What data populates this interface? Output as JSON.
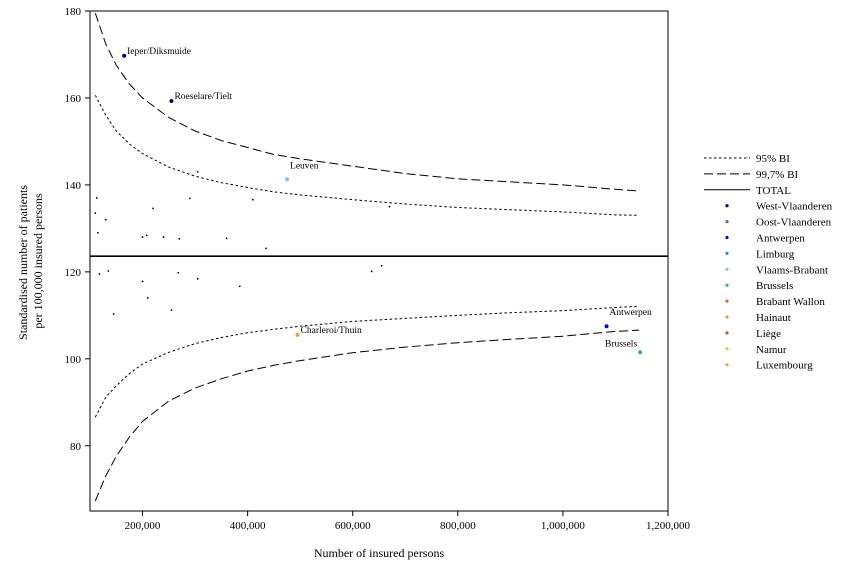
{
  "chart_data": {
    "type": "scatter",
    "title": "",
    "xlabel": "Number of insured persons",
    "ylabel_lines": [
      "Standardised number of patients",
      "per 100,000 insured persons"
    ],
    "xlim": [
      100000,
      1200000
    ],
    "ylim": [
      65,
      180
    ],
    "xticks": [
      200000,
      400000,
      600000,
      800000,
      1000000,
      1200000
    ],
    "xtick_labels": [
      "200,000",
      "400,000",
      "600,000",
      "800,000",
      "1,000,000",
      "1,200,000"
    ],
    "yticks": [
      80,
      100,
      120,
      140,
      160,
      180
    ],
    "ytick_labels": [
      "80",
      "100",
      "120",
      "140",
      "160",
      "180"
    ],
    "grid": false,
    "legend_position": "right",
    "total": 123.6,
    "limits_x": [
      110000,
      130000,
      150000,
      175000,
      200000,
      250000,
      300000,
      350000,
      400000,
      450000,
      500000,
      600000,
      700000,
      800000,
      900000,
      1000000,
      1100000,
      1145000
    ],
    "limits": [
      {
        "name": "95% BI",
        "style": "dotted",
        "upper": [
          160.6,
          156.0,
          152.4,
          149.4,
          147.2,
          144.1,
          142.0,
          140.5,
          139.4,
          138.4,
          137.7,
          136.6,
          135.6,
          134.8,
          134.3,
          133.8,
          133.1,
          133.0
        ],
        "lower": [
          86.6,
          91.2,
          93.8,
          96.6,
          98.8,
          101.5,
          103.5,
          104.9,
          106.0,
          106.8,
          107.5,
          108.6,
          109.3,
          110.0,
          110.6,
          111.1,
          111.8,
          112.1
        ]
      },
      {
        "name": "99,7% BI",
        "style": "dashed",
        "upper": [
          179.5,
          172.4,
          167.5,
          163.2,
          160.0,
          155.5,
          152.4,
          150.2,
          148.6,
          147.0,
          146.0,
          144.3,
          142.6,
          141.4,
          140.7,
          140.0,
          139.0,
          138.6
        ],
        "lower": [
          67.3,
          73.1,
          77.6,
          82.0,
          85.6,
          90.3,
          93.3,
          95.4,
          97.2,
          98.5,
          99.6,
          101.4,
          102.7,
          103.7,
          104.5,
          105.2,
          106.3,
          106.6
        ]
      }
    ],
    "highlighted_points": [
      {
        "label": "Ieper/Diksmuide",
        "province": "West-Vlaanderen",
        "x": 165000,
        "y": 169.7,
        "label_pos": "right"
      },
      {
        "label": "Roeselare/Tielt",
        "province": "West-Vlaanderen",
        "x": 255000,
        "y": 159.3,
        "label_pos": "right"
      },
      {
        "label": "Leuven",
        "province": "Vlaams-Brabant",
        "x": 475000,
        "y": 141.3,
        "label_pos": "upper-right"
      },
      {
        "label": "Charleroi/Thuin",
        "province": "Hainaut",
        "x": 495000,
        "y": 105.5,
        "label_pos": "right"
      },
      {
        "label": "Antwerpen",
        "province": "Antwerpen",
        "x": 1083000,
        "y": 107.5,
        "label_pos": "upper-right"
      },
      {
        "label": "Brussels",
        "province": "Brussels",
        "x": 1147000,
        "y": 101.5,
        "label_pos": "left"
      }
    ],
    "other_points": [
      {
        "x": 110000,
        "y": 133.5
      },
      {
        "x": 113000,
        "y": 137.0
      },
      {
        "x": 115000,
        "y": 129.0
      },
      {
        "x": 130000,
        "y": 132.0
      },
      {
        "x": 200000,
        "y": 128.0
      },
      {
        "x": 208000,
        "y": 128.4
      },
      {
        "x": 220000,
        "y": 134.6
      },
      {
        "x": 240000,
        "y": 128.0
      },
      {
        "x": 270000,
        "y": 127.6
      },
      {
        "x": 290000,
        "y": 136.9
      },
      {
        "x": 305000,
        "y": 143.0
      },
      {
        "x": 360000,
        "y": 127.7
      },
      {
        "x": 410000,
        "y": 136.6
      },
      {
        "x": 435000,
        "y": 125.4
      },
      {
        "x": 670000,
        "y": 135.0
      },
      {
        "x": 118000,
        "y": 119.5
      },
      {
        "x": 135000,
        "y": 120.2
      },
      {
        "x": 145000,
        "y": 110.3
      },
      {
        "x": 200000,
        "y": 117.8
      },
      {
        "x": 210000,
        "y": 114.0
      },
      {
        "x": 255000,
        "y": 111.2
      },
      {
        "x": 268000,
        "y": 119.8
      },
      {
        "x": 305000,
        "y": 118.4
      },
      {
        "x": 385000,
        "y": 116.7
      },
      {
        "x": 636000,
        "y": 120.1
      },
      {
        "x": 655000,
        "y": 121.4
      }
    ],
    "legend": [
      {
        "label": "95% BI",
        "kind": "line",
        "style": "dotted",
        "color": "#000000"
      },
      {
        "label": "99,7% BI",
        "kind": "line",
        "style": "dashed",
        "color": "#000000"
      },
      {
        "label": "TOTAL",
        "kind": "line",
        "style": "solid",
        "color": "#000000"
      },
      {
        "label": "West-Vlaanderen",
        "kind": "point",
        "color": "#00007f"
      },
      {
        "label": "Oost-Vlaanderen",
        "kind": "point",
        "color": "#3f6fcf"
      },
      {
        "label": "Antwerpen",
        "kind": "point",
        "color": "#0000ee"
      },
      {
        "label": "Limburg",
        "kind": "point",
        "color": "#2f8fe8"
      },
      {
        "label": "Vlaams-Brabant",
        "kind": "point",
        "color": "#7fbfff"
      },
      {
        "label": "Brussels",
        "kind": "point",
        "color": "#2ec24a"
      },
      {
        "label": "Brabant Wallon",
        "kind": "point",
        "color": "#e0652a"
      },
      {
        "label": "Hainaut",
        "kind": "point",
        "color": "#f29a2a"
      },
      {
        "label": "Liège",
        "kind": "point",
        "color": "#b45a3a"
      },
      {
        "label": "Namur",
        "kind": "point",
        "color": "#f2c12e"
      },
      {
        "label": "Luxembourg",
        "kind": "point",
        "color": "#f2a83a"
      }
    ]
  }
}
